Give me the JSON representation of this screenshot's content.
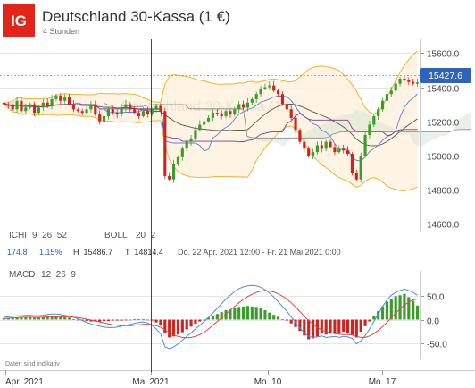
{
  "header": {
    "logo": "IG",
    "title": "Deutschland 30-Kassa (1 €)",
    "timeframe": "4 Stunden"
  },
  "colors": {
    "logo_bg": "#e3241b",
    "bull": "#3a9d2a",
    "bear": "#d0231f",
    "boll": "#f0b429",
    "cloud": "#fff2de",
    "price_box": "#2f63b9",
    "macd_line": "#4a8fd8",
    "signal_line": "#e04545"
  },
  "main_chart": {
    "y_ticks": [
      14600,
      14800,
      15000,
      15200,
      15400,
      15600
    ],
    "y_tick_labels": [
      "14600.0",
      "14800.0",
      "15000.0",
      "15200.0",
      "15400.0",
      "15600.0"
    ],
    "ylim": [
      14560,
      15680
    ],
    "price_label": "15427.6",
    "watermark": "Deutschland 30-Kassa (1 €)"
  },
  "indicators": {
    "ichi_label": "ICHI",
    "ichi_params": "9  26  52",
    "boll_label": "BOLL",
    "boll_params": "20  2",
    "stat_change": "174.8",
    "stat_pct": "1.15%",
    "stat_high": "H  15486.7",
    "stat_low": "T  14814.4",
    "date_range": "Do. 22 Apr. 2021 12:00 - Fr. 21 Mai 2021 0:00"
  },
  "macd": {
    "label": "MACD",
    "params": "12  26  9",
    "y_ticks": [
      50,
      0,
      -50
    ],
    "y_tick_labels": [
      "50.0",
      "0.0",
      "-50.0"
    ],
    "ylim": [
      -85,
      85
    ]
  },
  "disclaimer": "Daten sind indikativ",
  "x_axis": {
    "labels": [
      "Apr. 2021",
      "Mai 2021",
      "Mo. 10",
      "Mo. 17"
    ]
  },
  "chart_data": {
    "type": "candlestick",
    "title": "Deutschland 30-Kassa (1 €)",
    "interval": "4 Stunden",
    "range": "Do. 22 Apr. 2021 12:00 - Fr. 21 Mai 2021 0:00",
    "last_price": 15427.6,
    "high": 15486.7,
    "low": 14814.4,
    "change": 174.8,
    "change_pct": 1.15,
    "ylim": [
      14560,
      15680
    ],
    "x_ticks": [
      "Apr. 2021",
      "Mai 2021",
      "Mo. 10",
      "Mo. 17"
    ],
    "closes": [
      15300,
      15290,
      15270,
      15320,
      15260,
      15280,
      15300,
      15250,
      15280,
      15310,
      15290,
      15330,
      15350,
      15320,
      15340,
      15300,
      15270,
      15260,
      15250,
      15270,
      15300,
      15240,
      15200,
      15230,
      15270,
      15250,
      15240,
      15280,
      15300,
      15270,
      15250,
      15230,
      15260,
      15240,
      15270,
      15290,
      15260,
      14880,
      14860,
      14950,
      14990,
      15040,
      15080,
      15100,
      15150,
      15180,
      15200,
      15220,
      15250,
      15240,
      15230,
      15260,
      15240,
      15270,
      15300,
      15280,
      15310,
      15330,
      15360,
      15390,
      15400,
      15410,
      15380,
      15360,
      15300,
      15270,
      15220,
      15150,
      15080,
      15040,
      15000,
      15020,
      15060,
      15040,
      15080,
      15050,
      15020,
      15040,
      15030,
      15010,
      14900,
      14860,
      15000,
      15120,
      15180,
      15230,
      15270,
      15320,
      15360,
      15380,
      15420,
      15450,
      15440,
      15430,
      15420,
      15427.6
    ],
    "macd_histogram": [
      3,
      3,
      3,
      4,
      4,
      4,
      4,
      4,
      4,
      5,
      6,
      7,
      7,
      6,
      5,
      4,
      1,
      -1,
      -2,
      -3,
      -4,
      -4,
      -4,
      -3,
      -3,
      -2,
      -2,
      -2,
      -1,
      0,
      1,
      1,
      1,
      0,
      -2,
      -6,
      -12,
      -30,
      -38,
      -36,
      -32,
      -27,
      -21,
      -15,
      -9,
      -4,
      0,
      4,
      8,
      12,
      16,
      20,
      22,
      25,
      27,
      28,
      29,
      28,
      27,
      24,
      20,
      15,
      10,
      6,
      1,
      -2,
      -8,
      -16,
      -24,
      -34,
      -42,
      -40,
      -36,
      -30,
      -32,
      -30,
      -28,
      -30,
      -26,
      -28,
      -33,
      -38,
      -26,
      -14,
      -4,
      8,
      18,
      28,
      38,
      45,
      50,
      52,
      55,
      48,
      40,
      30
    ],
    "macd_line_values": [
      5,
      6,
      7,
      8,
      8,
      9,
      9,
      8,
      8,
      9,
      11,
      12,
      12,
      11,
      9,
      7,
      5,
      2,
      -2,
      -6,
      -9,
      -12,
      -14,
      -16,
      -17,
      -17,
      -16,
      -14,
      -12,
      -10,
      -8,
      -6,
      -5,
      -7,
      -12,
      -20,
      -30,
      -58,
      -62,
      -58,
      -52,
      -44,
      -36,
      -28,
      -20,
      -12,
      -4,
      5,
      14,
      24,
      34,
      44,
      52,
      60,
      66,
      70,
      72,
      73,
      72,
      69,
      64,
      57,
      48,
      38,
      28,
      18,
      6,
      -6,
      -18,
      -28,
      -36,
      -38,
      -37,
      -35,
      -38,
      -37,
      -36,
      -38,
      -36,
      -37,
      -40,
      -52,
      -45,
      -34,
      -20,
      -4,
      12,
      28,
      42,
      52,
      58,
      62,
      65,
      62,
      58,
      52
    ],
    "signal_line_values": [
      2,
      3,
      4,
      4,
      5,
      5,
      5,
      5,
      5,
      5,
      6,
      6,
      6,
      6,
      6,
      6,
      5,
      4,
      3,
      1,
      -1,
      -3,
      -5,
      -7,
      -9,
      -11,
      -12,
      -13,
      -13,
      -13,
      -12,
      -11,
      -10,
      -10,
      -11,
      -13,
      -16,
      -22,
      -28,
      -33,
      -36,
      -38,
      -39,
      -38,
      -36,
      -32,
      -27,
      -20,
      -12,
      -4,
      4,
      12,
      20,
      28,
      36,
      43,
      49,
      54,
      58,
      61,
      62,
      61,
      59,
      55,
      50,
      44,
      36,
      27,
      17,
      7,
      -2,
      -10,
      -17,
      -22,
      -26,
      -28,
      -30,
      -31,
      -32,
      -32,
      -33,
      -36,
      -38,
      -38,
      -35,
      -30,
      -23,
      -15,
      -6,
      4,
      14,
      23,
      31,
      37,
      42,
      44
    ]
  }
}
